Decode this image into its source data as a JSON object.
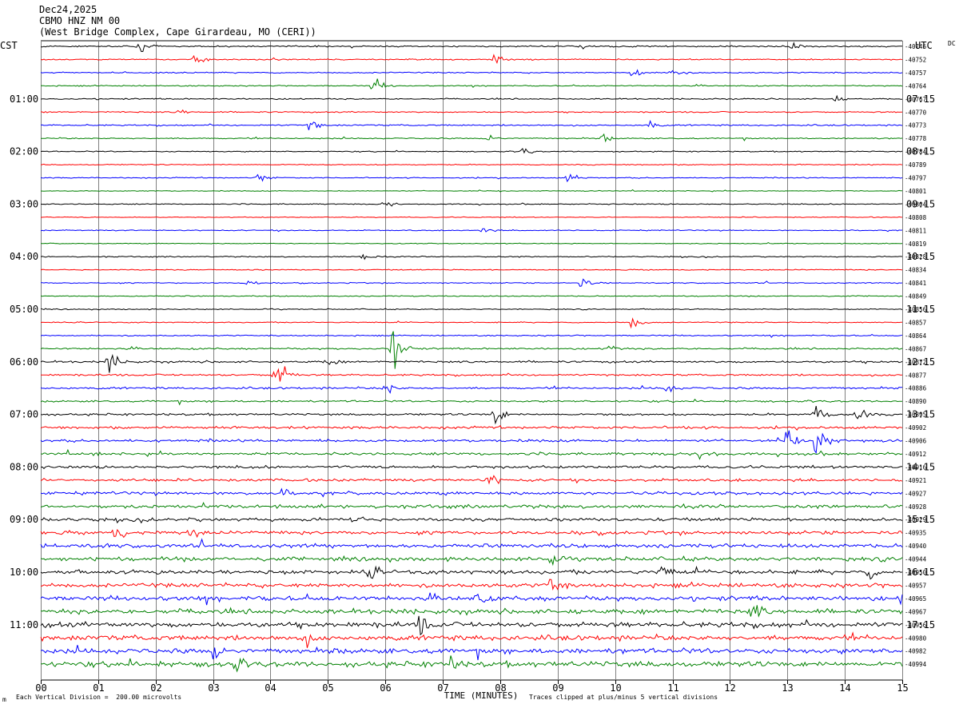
{
  "header": {
    "date": "Dec24,2025",
    "station": "CBMO HNZ NM 00",
    "location": "(West Bridge Complex, Cape Girardeau, MO (CERI))"
  },
  "left_axis_label": "CST",
  "right_axis_label": "UTC",
  "dc_label": "DC",
  "footer": {
    "scale_note": "Each Vertical Division =  200.00 microvolts",
    "clip_note": "Traces clipped at plus/minus 5 vertical divisions",
    "corner_mark": "m"
  },
  "colors": {
    "cycle": [
      "#000000",
      "#ff0000",
      "#0000ff",
      "#008000"
    ],
    "grid": "#808080"
  },
  "chart_data": {
    "type": "line",
    "title": "",
    "xlabel": "TIME (MINUTES)",
    "xlim": [
      0,
      15
    ],
    "xticks": [
      "00",
      "01",
      "02",
      "03",
      "04",
      "05",
      "06",
      "07",
      "08",
      "09",
      "10",
      "11",
      "12",
      "13",
      "14",
      "15"
    ],
    "rows_per_hour": 4,
    "left_hour_labels": [
      "01:00",
      "02:00",
      "03:00",
      "04:00",
      "05:00",
      "06:00",
      "07:00",
      "08:00",
      "09:00",
      "10:00",
      "11:00"
    ],
    "right_hour_labels": [
      "07:15",
      "08:15",
      "09:15",
      "10:15",
      "11:15",
      "12:15",
      "13:15",
      "14:15",
      "15:15",
      "16:15",
      "17:15"
    ],
    "dc_offsets": [
      "-40746",
      "-40752",
      "-40757",
      "-40764",
      "-40767",
      "-40770",
      "-40773",
      "-40778",
      "-40784",
      "-40789",
      "-40797",
      "-40801",
      "-40804",
      "-40808",
      "-40811",
      "-40819",
      "-40828",
      "-40834",
      "-40841",
      "-40849",
      "-40856",
      "-40857",
      "-40864",
      "-40867",
      "-40872",
      "-40877",
      "-40886",
      "-40890",
      "-40895",
      "-40902",
      "-40906",
      "-40912",
      "-40916",
      "-40921",
      "-40927",
      "-40928",
      "-40929",
      "-40935",
      "-40940",
      "-40944",
      "-40950",
      "-40957",
      "-40965",
      "-40967",
      "-40956",
      "-40980",
      "-40982",
      "-40994"
    ],
    "noise_level": [
      0.7,
      0.6,
      0.6,
      0.5,
      0.6,
      0.6,
      0.7,
      0.6,
      0.5,
      0.5,
      0.5,
      0.4,
      0.5,
      0.4,
      0.5,
      0.4,
      0.5,
      0.5,
      0.5,
      0.5,
      0.5,
      0.5,
      0.6,
      0.8,
      1.0,
      0.9,
      1.0,
      0.9,
      1.0,
      1.2,
      1.3,
      1.3,
      1.3,
      1.3,
      1.5,
      1.6,
      1.6,
      1.7,
      1.9,
      1.9,
      2.0,
      2.0,
      2.2,
      2.3,
      2.5,
      2.5,
      2.5,
      2.6
    ],
    "events": [
      {
        "row": 0,
        "minute": 1.7,
        "amplitude": 9
      },
      {
        "row": 0,
        "minute": 9.4,
        "amplitude": 6
      },
      {
        "row": 0,
        "minute": 13.1,
        "amplitude": 5
      },
      {
        "row": 1,
        "minute": 2.7,
        "amplitude": 6
      },
      {
        "row": 1,
        "minute": 7.9,
        "amplitude": 6
      },
      {
        "row": 2,
        "minute": 10.3,
        "amplitude": 8
      },
      {
        "row": 2,
        "minute": 11.0,
        "amplitude": 8
      },
      {
        "row": 3,
        "minute": 5.8,
        "amplitude": 9
      },
      {
        "row": 4,
        "minute": 13.8,
        "amplitude": 5
      },
      {
        "row": 5,
        "minute": 2.4,
        "amplitude": 5
      },
      {
        "row": 6,
        "minute": 4.7,
        "amplitude": 8
      },
      {
        "row": 6,
        "minute": 10.6,
        "amplitude": 6
      },
      {
        "row": 7,
        "minute": 7.8,
        "amplitude": 5
      },
      {
        "row": 7,
        "minute": 9.8,
        "amplitude": 5
      },
      {
        "row": 8,
        "minute": 8.4,
        "amplitude": 5
      },
      {
        "row": 10,
        "minute": 3.8,
        "amplitude": 6
      },
      {
        "row": 10,
        "minute": 9.2,
        "amplitude": 6
      },
      {
        "row": 12,
        "minute": 6.0,
        "amplitude": 5
      },
      {
        "row": 14,
        "minute": 7.7,
        "amplitude": 5
      },
      {
        "row": 16,
        "minute": 5.6,
        "amplitude": 6
      },
      {
        "row": 18,
        "minute": 3.6,
        "amplitude": 5
      },
      {
        "row": 18,
        "minute": 9.4,
        "amplitude": 7
      },
      {
        "row": 21,
        "minute": 10.3,
        "amplitude": 8
      },
      {
        "row": 23,
        "minute": 6.1,
        "amplitude": 30
      },
      {
        "row": 23,
        "minute": 9.9,
        "amplitude": 6
      },
      {
        "row": 24,
        "minute": 1.2,
        "amplitude": 14
      },
      {
        "row": 24,
        "minute": 5.0,
        "amplitude": 8
      },
      {
        "row": 25,
        "minute": 4.1,
        "amplitude": 20
      },
      {
        "row": 26,
        "minute": 6.0,
        "amplitude": 9
      },
      {
        "row": 26,
        "minute": 10.9,
        "amplitude": 7
      },
      {
        "row": 28,
        "minute": 7.9,
        "amplitude": 13
      },
      {
        "row": 28,
        "minute": 14.2,
        "amplitude": 11
      },
      {
        "row": 28,
        "minute": 13.5,
        "amplitude": 10
      },
      {
        "row": 30,
        "minute": 13.0,
        "amplitude": 14
      },
      {
        "row": 30,
        "minute": 13.5,
        "amplitude": 22
      },
      {
        "row": 31,
        "minute": 11.5,
        "amplitude": 14
      },
      {
        "row": 33,
        "minute": 7.8,
        "amplitude": 12
      },
      {
        "row": 34,
        "minute": 4.2,
        "amplitude": 8
      },
      {
        "row": 36,
        "minute": 5.4,
        "amplitude": 9
      },
      {
        "row": 37,
        "minute": 1.3,
        "amplitude": 12
      },
      {
        "row": 37,
        "minute": 2.6,
        "amplitude": 10
      },
      {
        "row": 39,
        "minute": 8.9,
        "amplitude": 10
      },
      {
        "row": 40,
        "minute": 5.7,
        "amplitude": 14
      },
      {
        "row": 40,
        "minute": 10.8,
        "amplitude": 12
      },
      {
        "row": 40,
        "minute": 14.4,
        "amplitude": 10
      },
      {
        "row": 41,
        "minute": 8.9,
        "amplitude": 16
      },
      {
        "row": 42,
        "minute": 7.6,
        "amplitude": 12
      },
      {
        "row": 42,
        "minute": 15.0,
        "amplitude": 10
      },
      {
        "row": 43,
        "minute": 12.4,
        "amplitude": 14
      },
      {
        "row": 44,
        "minute": 6.6,
        "amplitude": 14
      },
      {
        "row": 45,
        "minute": 4.6,
        "amplitude": 10
      },
      {
        "row": 46,
        "minute": 3.0,
        "amplitude": 14
      },
      {
        "row": 47,
        "minute": 7.1,
        "amplitude": 16
      },
      {
        "row": 47,
        "minute": 3.4,
        "amplitude": 12
      }
    ]
  }
}
